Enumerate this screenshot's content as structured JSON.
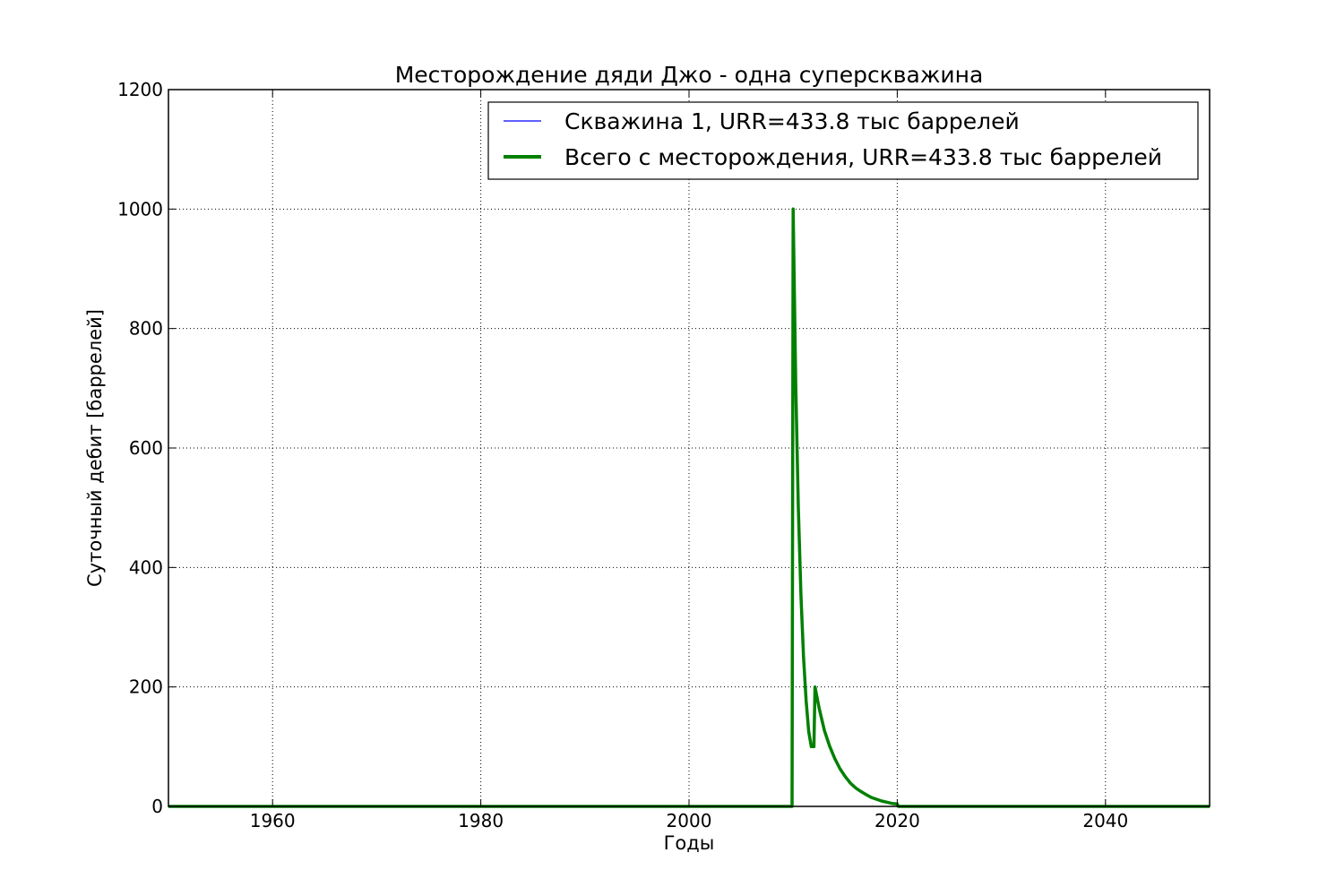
{
  "chart_data": {
    "type": "line",
    "title": "Месторождение дяди Джо - одна суперскважина",
    "xlabel": "Годы",
    "ylabel": "Суточный дебит [баррелей]",
    "xlim": [
      1950,
      2050
    ],
    "ylim": [
      0,
      1200
    ],
    "xticks": [
      1960,
      1980,
      2000,
      2020,
      2040
    ],
    "yticks": [
      0,
      200,
      400,
      600,
      800,
      1000,
      1200
    ],
    "grid": true,
    "legend_position": "top-right",
    "series": [
      {
        "name": "Скважина 1, URR=433.8 тыс баррелей",
        "color": "#0000ff",
        "x": [
          1950,
          2009.9,
          2010,
          2010.25,
          2010.5,
          2010.75,
          2011,
          2011.25,
          2011.5,
          2011.75,
          2012,
          2012.1,
          2012.5,
          2013,
          2013.5,
          2014,
          2014.5,
          2015,
          2015.5,
          2016,
          2016.5,
          2017,
          2017.5,
          2018,
          2018.5,
          2019,
          2019.5,
          2020,
          2020.1,
          2050
        ],
        "y": [
          0,
          0,
          1000,
          707,
          500,
          354,
          250,
          177,
          125,
          100,
          100,
          200,
          164,
          127,
          101,
          80,
          63,
          50,
          39,
          31,
          25,
          20,
          15,
          12,
          9,
          7,
          5,
          4,
          0,
          0
        ]
      },
      {
        "name": "Всего с месторождения, URR=433.8 тыс баррелей",
        "color": "#008000",
        "x": [
          1950,
          2009.9,
          2010,
          2010.25,
          2010.5,
          2010.75,
          2011,
          2011.25,
          2011.5,
          2011.75,
          2012,
          2012.1,
          2012.5,
          2013,
          2013.5,
          2014,
          2014.5,
          2015,
          2015.5,
          2016,
          2016.5,
          2017,
          2017.5,
          2018,
          2018.5,
          2019,
          2019.5,
          2020,
          2020.1,
          2050
        ],
        "y": [
          0,
          0,
          1000,
          707,
          500,
          354,
          250,
          177,
          125,
          100,
          100,
          200,
          164,
          127,
          101,
          80,
          63,
          50,
          39,
          31,
          25,
          20,
          15,
          12,
          9,
          7,
          5,
          4,
          0,
          0
        ]
      }
    ]
  }
}
